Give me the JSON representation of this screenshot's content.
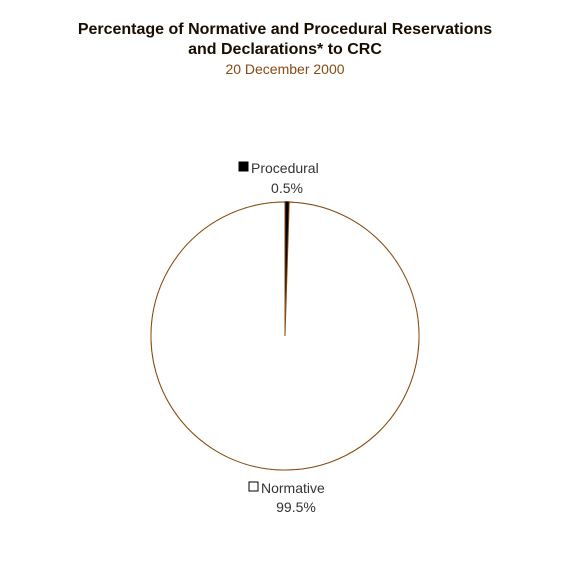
{
  "title_lines": [
    "Percentage of Normative and Procedural Reservations",
    "and Declarations* to CRC"
  ],
  "subtitle": "20 December 2000",
  "colors": {
    "title": "#1a0d00",
    "subtitle": "#8a4a10",
    "pie_outline": "#8a4a10",
    "normative_fill": "#ffffff",
    "procedural_fill": "#000000"
  },
  "chart_data": {
    "type": "pie",
    "title": "Percentage of Normative and Procedural Reservations and Declarations* to CRC",
    "subtitle": "20 December 2000",
    "slices": [
      {
        "name": "Procedural",
        "value": 0.5,
        "label": "0.5%",
        "color": "#000000"
      },
      {
        "name": "Normative",
        "value": 99.5,
        "label": "99.5%",
        "color": "#ffffff"
      }
    ],
    "legend": "labels adjacent to slices"
  }
}
